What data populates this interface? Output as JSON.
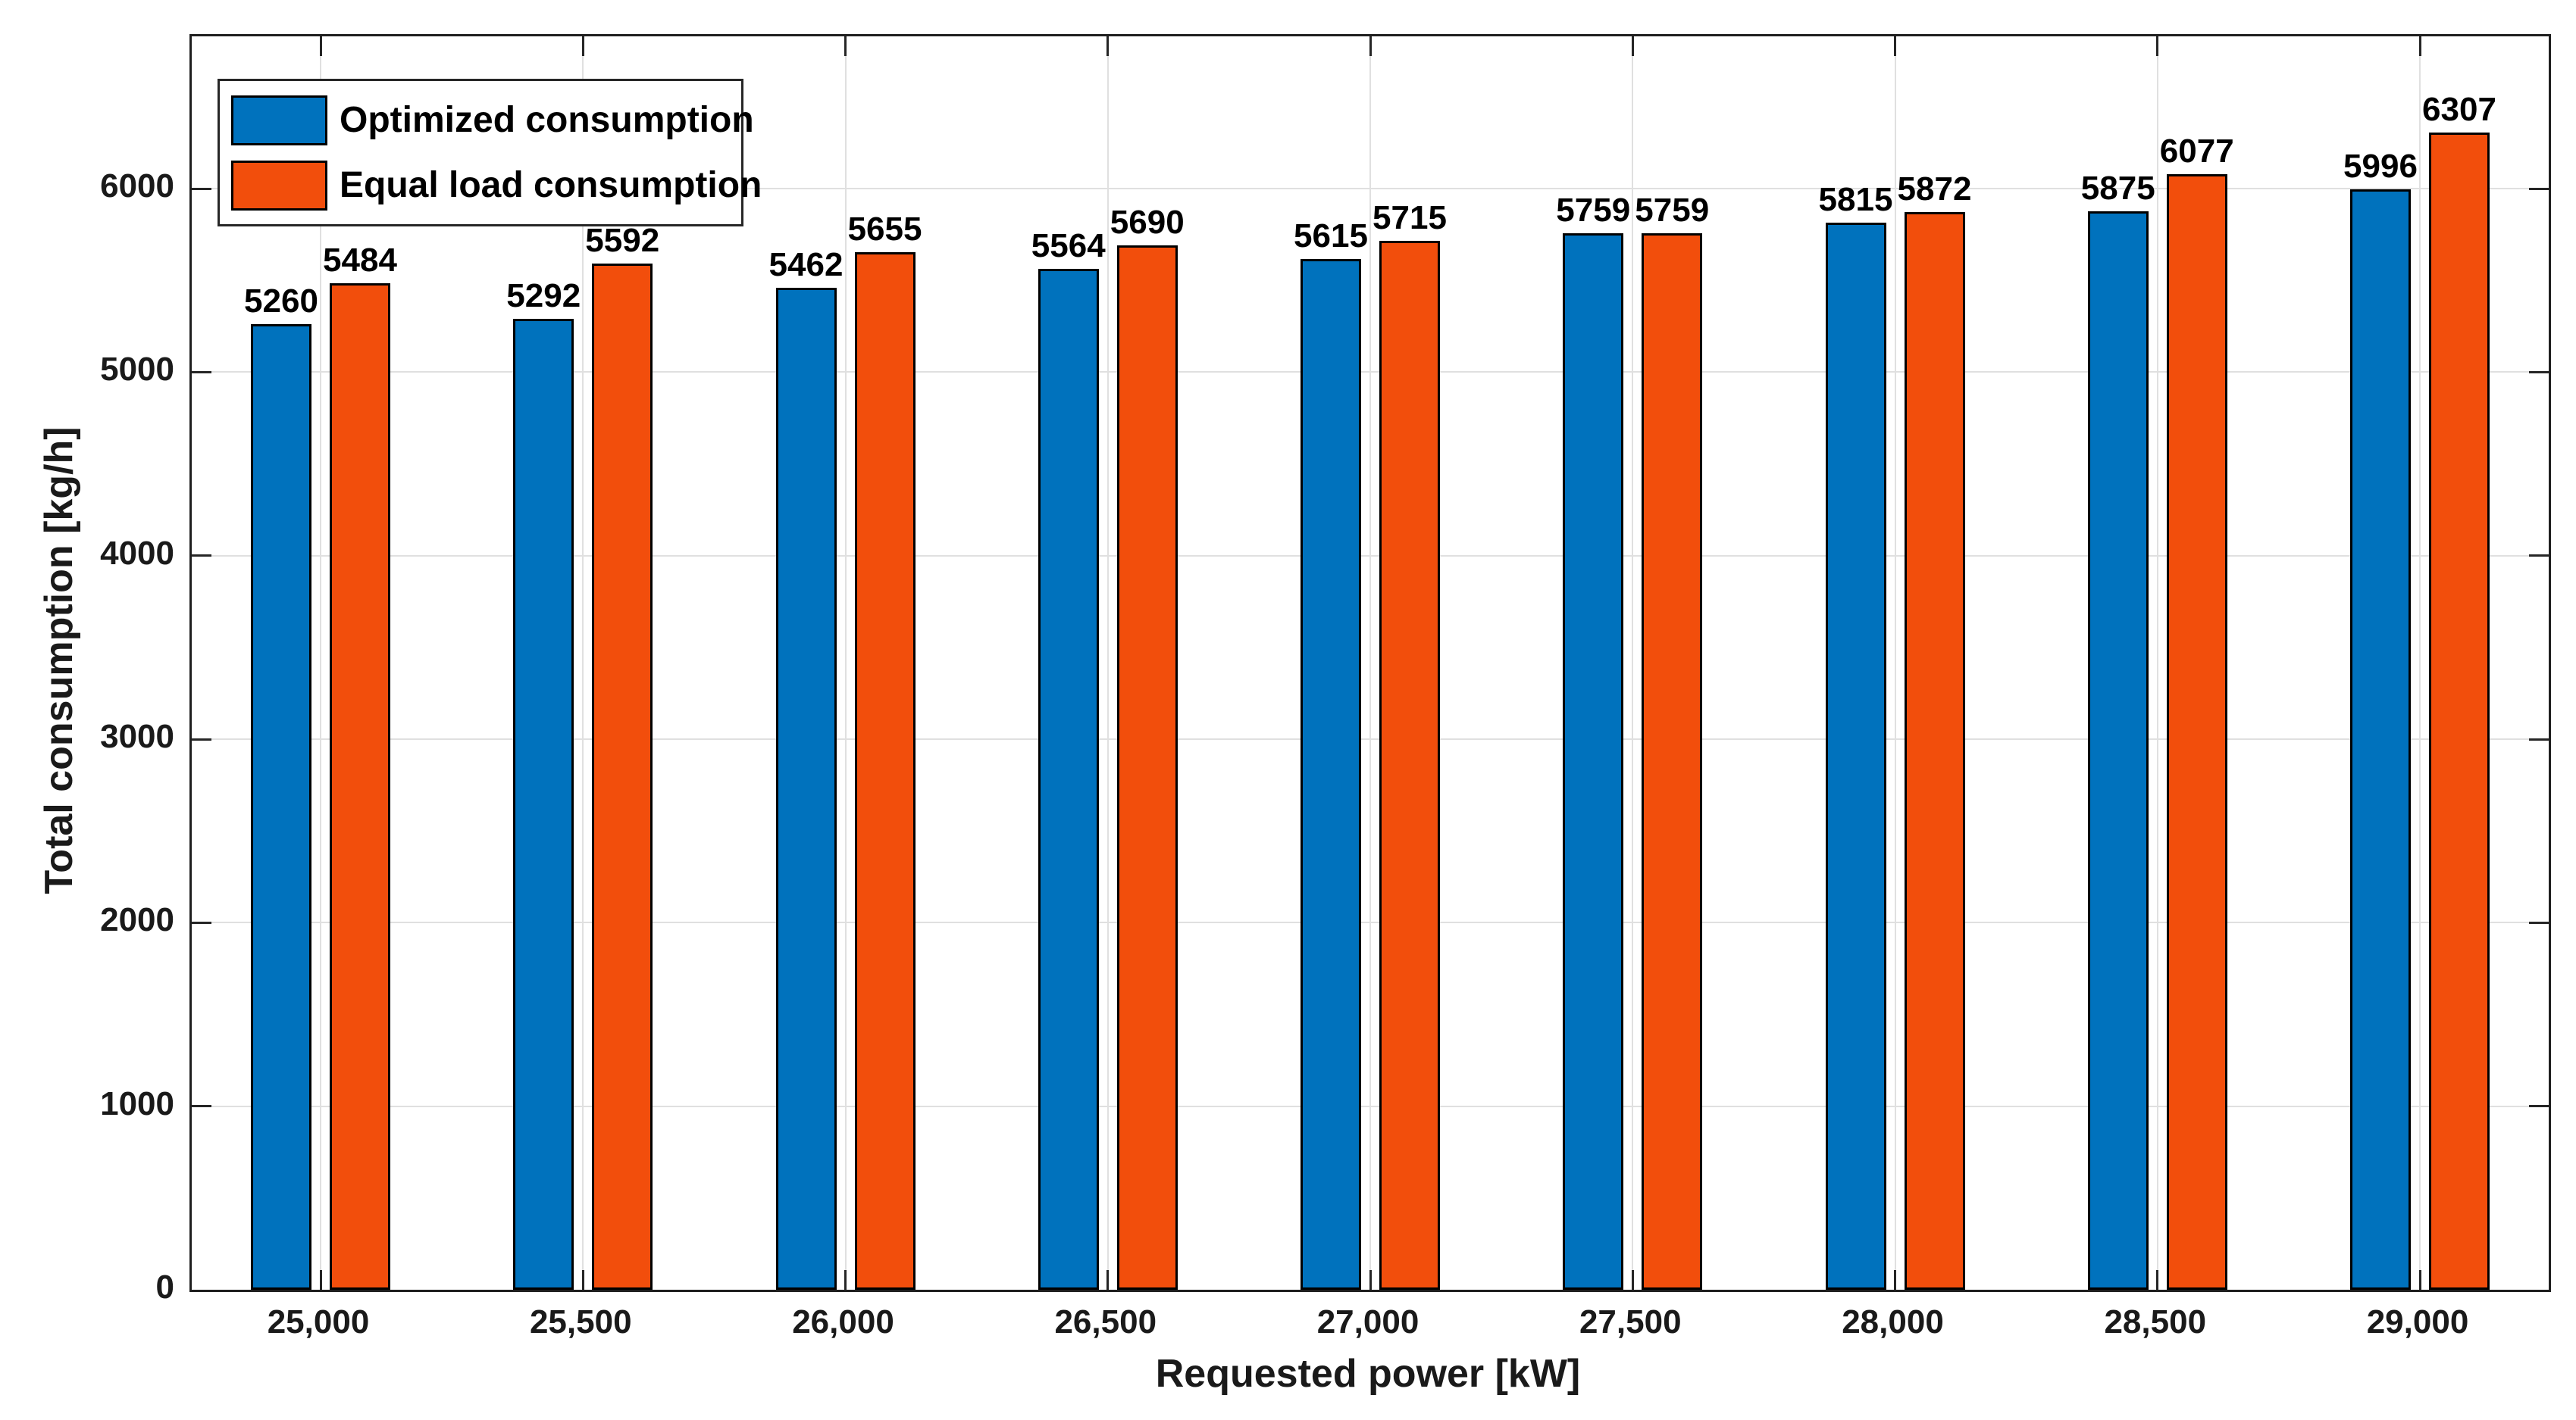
{
  "chart_data": {
    "type": "bar",
    "title": "",
    "xlabel": "Requested power [kW]",
    "ylabel": "Total consumption [kg/h]",
    "categories": [
      "25,000",
      "25,500",
      "26,000",
      "26,500",
      "27,000",
      "27,500",
      "28,000",
      "28,500",
      "29,000"
    ],
    "series": [
      {
        "name": "Optimized consumption",
        "color": "#0072BD",
        "values": [
          5260,
          5292,
          5462,
          5564,
          5615,
          5759,
          5815,
          5875,
          5996
        ]
      },
      {
        "name": "Equal load consumption",
        "color": "#F24E0C",
        "values": [
          5484,
          5592,
          5655,
          5690,
          5715,
          5759,
          5872,
          6077,
          6307
        ]
      }
    ],
    "bar_labels": true,
    "ylim": [
      0,
      6830
    ],
    "yticks": [
      0,
      1000,
      2000,
      3000,
      4000,
      5000,
      6000
    ],
    "grid": true,
    "legend_position": "top-left",
    "colors": {
      "grid": "#e0e0e0",
      "axis": "#262626",
      "bar_edge": "#000000",
      "text": "#1a1a1a"
    }
  }
}
